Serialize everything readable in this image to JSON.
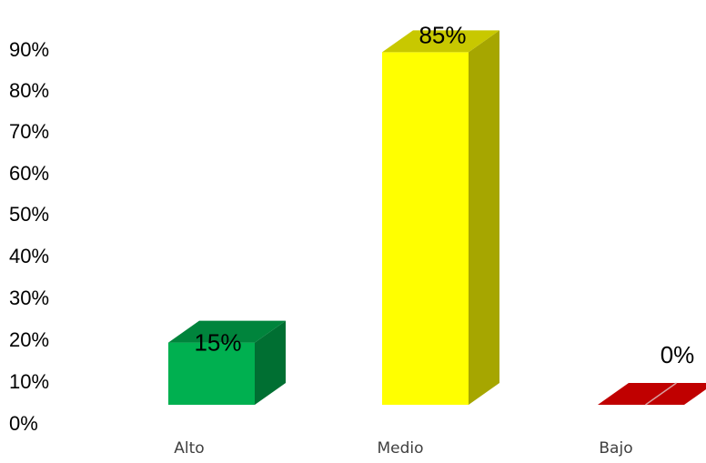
{
  "chart_data": {
    "type": "bar",
    "style": "3d-column",
    "categories": [
      "Alto",
      "Medio",
      "Bajo"
    ],
    "values": [
      15,
      85,
      0
    ],
    "data_labels": [
      "15%",
      "85%",
      "0%"
    ],
    "bar_colors": [
      {
        "front": "#00b050",
        "top": "#00843c",
        "side": "#006f32"
      },
      {
        "front": "#ffff00",
        "top": "#c8c800",
        "side": "#a6a600"
      },
      {
        "front": "#c00000",
        "top": "#c00000",
        "side": "#8c0000"
      }
    ],
    "yticks": [
      "0%",
      "10%",
      "20%",
      "30%",
      "40%",
      "50%",
      "60%",
      "70%",
      "80%",
      "90%"
    ],
    "ylim": [
      0,
      90
    ],
    "title": "",
    "xlabel": "",
    "ylabel": "",
    "grid": false,
    "legend": "none"
  }
}
